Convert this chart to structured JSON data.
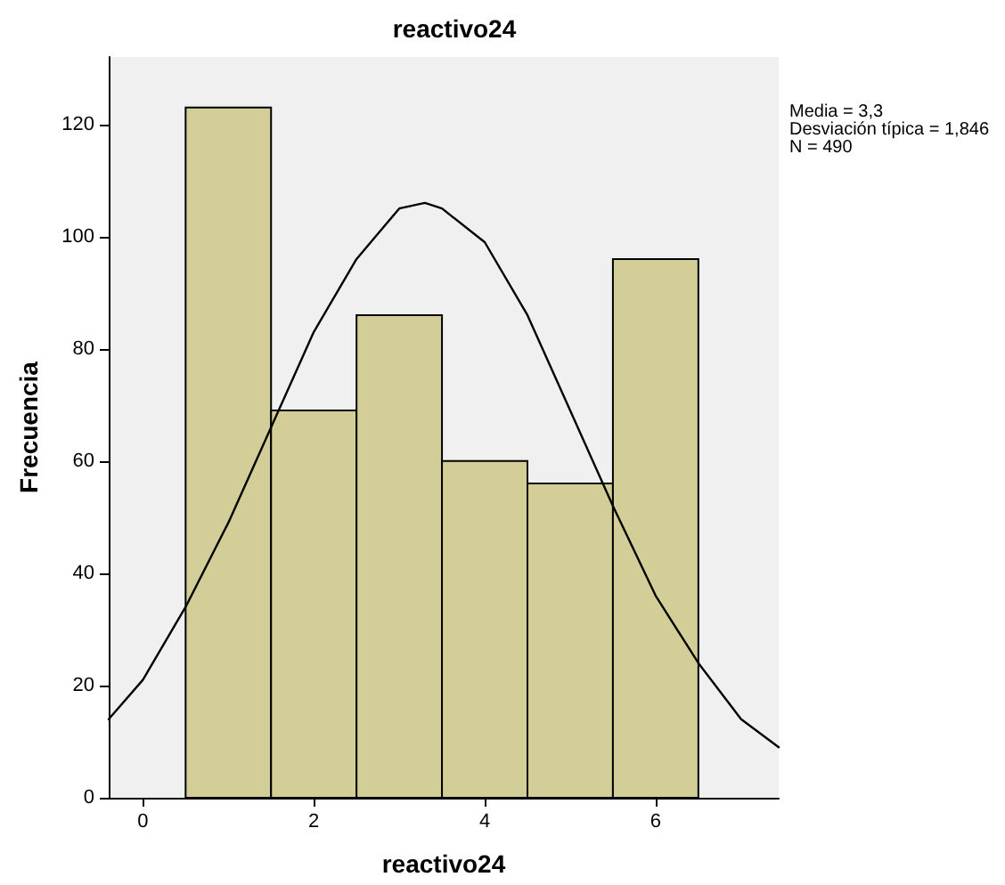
{
  "chart_data": {
    "type": "histogram",
    "title": "reactivo24",
    "xlabel": "reactivo24",
    "ylabel": "Frecuencia",
    "annotations": [
      "Media = 3,3",
      "Desviación típica = 1,846",
      "N = 490"
    ],
    "xlim": [
      -0.4,
      7.44
    ],
    "xticks": [
      0,
      2,
      4,
      6
    ],
    "ylim": [
      0,
      132
    ],
    "yticks": [
      0,
      20,
      40,
      60,
      80,
      100,
      120
    ],
    "grid": false,
    "series": [
      {
        "type": "histogram",
        "color": "#d3ce97",
        "bins": [
          0.5,
          1.5,
          2.5,
          3.5,
          4.5,
          5.5,
          6.5
        ],
        "values": [
          123,
          69,
          86,
          60,
          56,
          96
        ]
      },
      {
        "type": "line",
        "color": "#000000",
        "marker": "none",
        "x": [
          -0.4,
          0,
          0.5,
          1,
          1.5,
          2,
          2.5,
          3,
          3.3,
          3.5,
          4,
          4.5,
          5,
          5.5,
          6,
          6.5,
          7,
          7.44
        ],
        "values": [
          14,
          21,
          34,
          49,
          66,
          83,
          96,
          105,
          106,
          105,
          99,
          86,
          69,
          52,
          36,
          24,
          14,
          9
        ]
      }
    ]
  }
}
